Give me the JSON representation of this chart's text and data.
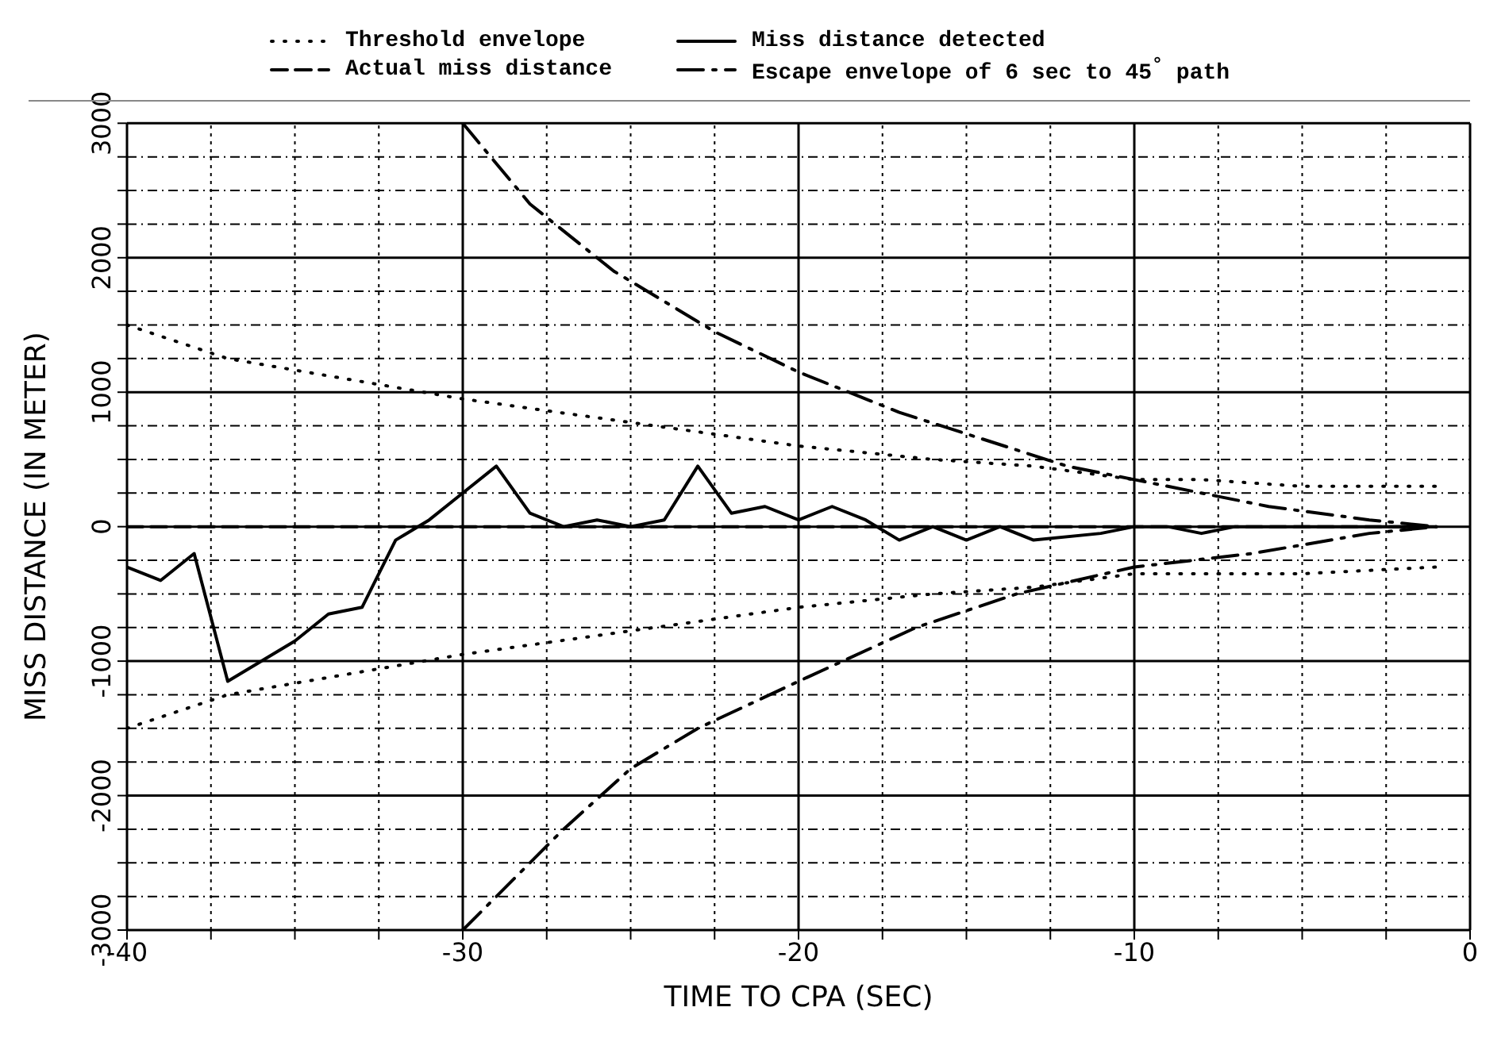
{
  "chart_data": {
    "type": "line",
    "xlabel": "TIME TO CPA (SEC)",
    "ylabel": "MISS DISTANCE (IN METER)",
    "xlim": [
      -40,
      0
    ],
    "ylim": [
      -3000,
      3000
    ],
    "xticks": [
      -40,
      {
        "value": -37.5,
        "label": null
      },
      {
        "value": -35,
        "label": null
      },
      {
        "value": -32.5,
        "label": null
      },
      -30,
      {
        "value": -27.5,
        "label": null
      },
      {
        "value": -25,
        "label": null
      },
      {
        "value": -22.5,
        "label": null
      },
      -20,
      {
        "value": -17.5,
        "label": null
      },
      {
        "value": -15,
        "label": null
      },
      {
        "value": -12.5,
        "label": null
      },
      -10,
      {
        "value": -7.5,
        "label": null
      },
      {
        "value": -5,
        "label": null
      },
      {
        "value": -2.5,
        "label": null
      },
      0
    ],
    "yticks": [
      -3000,
      {
        "value": -2750,
        "label": null
      },
      {
        "value": -2500,
        "label": null
      },
      {
        "value": -2250,
        "label": null
      },
      -2000,
      {
        "value": -1750,
        "label": null
      },
      {
        "value": -1500,
        "label": null
      },
      {
        "value": -1250,
        "label": null
      },
      -1000,
      {
        "value": -750,
        "label": null
      },
      {
        "value": -500,
        "label": null
      },
      {
        "value": -250,
        "label": null
      },
      0,
      {
        "value": 250,
        "label": null
      },
      {
        "value": 500,
        "label": null
      },
      {
        "value": 750,
        "label": null
      },
      1000,
      {
        "value": 1250,
        "label": null
      },
      {
        "value": 1500,
        "label": null
      },
      {
        "value": 1750,
        "label": null
      },
      2000,
      {
        "value": 2250,
        "label": null
      },
      {
        "value": 2500,
        "label": null
      },
      {
        "value": 2750,
        "label": null
      },
      3000
    ],
    "grid": true,
    "legend": "top",
    "marker": "none",
    "series": [
      {
        "name": "Threshold envelope",
        "color": "#000000",
        "line_style": "dotted",
        "x": [
          -40,
          -37,
          -30,
          -20,
          -16,
          -13,
          -10,
          -8,
          -5,
          -1
        ],
        "values": [
          1500,
          1250,
          950,
          600,
          500,
          450,
          350,
          350,
          300,
          300
        ]
      },
      {
        "name": "Actual miss distance",
        "color": "#000000",
        "line_style": "dashed",
        "x": [
          -40,
          -30,
          -20,
          -10,
          -5,
          -1
        ],
        "values": [
          0,
          0,
          0,
          0,
          0,
          0
        ]
      },
      {
        "name": "Miss distance detected",
        "color": "#000000",
        "line_style": "solid",
        "x": [
          -40,
          -39,
          -38,
          -37,
          -35,
          -34,
          -33,
          -32,
          -31,
          -30,
          -29,
          -28,
          -27,
          -26,
          -25,
          -24,
          -23,
          -22,
          -21,
          -20,
          -19,
          -18,
          -17,
          -16,
          -15,
          -14,
          -13,
          -11,
          -10,
          -9,
          -8,
          -7,
          -6,
          -5,
          -4,
          -3,
          -2,
          -1
        ],
        "values": [
          -300,
          -400,
          -200,
          -1150,
          -850,
          -650,
          -600,
          -100,
          50,
          250,
          450,
          100,
          0,
          50,
          0,
          50,
          450,
          100,
          150,
          50,
          150,
          50,
          -100,
          0,
          -100,
          0,
          -100,
          -50,
          0,
          0,
          -50,
          0,
          0,
          0,
          0,
          0,
          0,
          0
        ]
      },
      {
        "name": "Escape envelope of 6 sec to 45$^{°}$ path",
        "color": "#000000",
        "line_style": "dashdot",
        "x": [
          -30,
          -28,
          -25.5,
          -22.5,
          -20,
          -17,
          -14.5,
          -12,
          -10,
          -6,
          -3,
          -1
        ],
        "values": [
          3000,
          2400,
          1900,
          1450,
          1150,
          850,
          650,
          450,
          350,
          150,
          50,
          0
        ]
      },
      {
        "color": "#000000",
        "line_style": "dotted",
        "x": [
          -40,
          -37,
          -30,
          -20,
          -16,
          -13,
          -10,
          -8,
          -5,
          -1
        ],
        "values": [
          -1500,
          -1250,
          -950,
          -600,
          -500,
          -450,
          -350,
          -350,
          -350,
          -300
        ]
      },
      {
        "color": "#000000",
        "line_style": "dashdot",
        "x": [
          -30,
          -27,
          -25,
          -23,
          -20,
          -16.5,
          -13.5,
          -10,
          -6.5,
          -3,
          -1
        ],
        "values": [
          -3000,
          -2250,
          -1800,
          -1500,
          -1150,
          -750,
          -500,
          -300,
          -200,
          -50,
          0
        ]
      }
    ]
  }
}
